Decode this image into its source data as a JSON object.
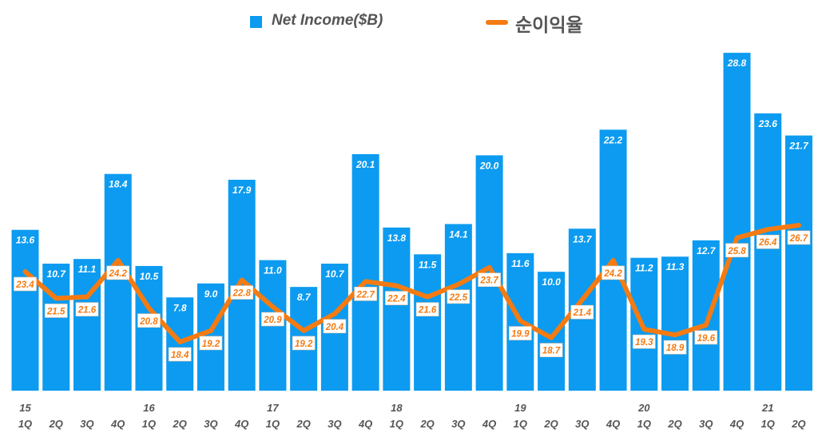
{
  "chart_data": {
    "type": "bar+line",
    "categories": [
      "15 1Q",
      "2Q",
      "3Q",
      "4Q",
      "16 1Q",
      "2Q",
      "3Q",
      "4Q",
      "17 1Q",
      "2Q",
      "3Q",
      "4Q",
      "18 1Q",
      "2Q",
      "3Q",
      "4Q",
      "19 1Q",
      "2Q",
      "3Q",
      "4Q",
      "20 1Q",
      "2Q",
      "3Q",
      "4Q",
      "21 1Q",
      "2Q"
    ],
    "year_labels": [
      "15",
      "",
      "",
      "",
      "16",
      "",
      "",
      "",
      "17",
      "",
      "",
      "",
      "18",
      "",
      "",
      "",
      "19",
      "",
      "",
      "",
      "20",
      "",
      "",
      "",
      "21",
      ""
    ],
    "quarter_labels": [
      "1Q",
      "2Q",
      "3Q",
      "4Q",
      "1Q",
      "2Q",
      "3Q",
      "4Q",
      "1Q",
      "2Q",
      "3Q",
      "4Q",
      "1Q",
      "2Q",
      "3Q",
      "4Q",
      "1Q",
      "2Q",
      "3Q",
      "4Q",
      "1Q",
      "2Q",
      "3Q",
      "4Q",
      "1Q",
      "2Q"
    ],
    "series": [
      {
        "name": "Net Income($B)",
        "type": "bar",
        "color": "#0c9bf0",
        "values": [
          13.6,
          10.7,
          11.1,
          18.4,
          10.5,
          7.8,
          9.0,
          17.9,
          11.0,
          8.7,
          10.7,
          20.1,
          13.8,
          11.5,
          14.1,
          20.0,
          11.6,
          10.0,
          13.7,
          22.2,
          11.2,
          11.3,
          12.7,
          28.8,
          23.6,
          21.7
        ]
      },
      {
        "name": "순이익율",
        "type": "line",
        "color": "#f47b12",
        "values": [
          23.4,
          21.5,
          21.6,
          24.2,
          20.8,
          18.4,
          19.2,
          22.8,
          20.9,
          19.2,
          20.4,
          22.7,
          22.4,
          21.6,
          22.5,
          23.7,
          19.9,
          18.7,
          21.4,
          24.2,
          19.3,
          18.9,
          19.6,
          25.8,
          26.4,
          26.7
        ]
      }
    ],
    "legend_position": "top",
    "grid": false
  }
}
